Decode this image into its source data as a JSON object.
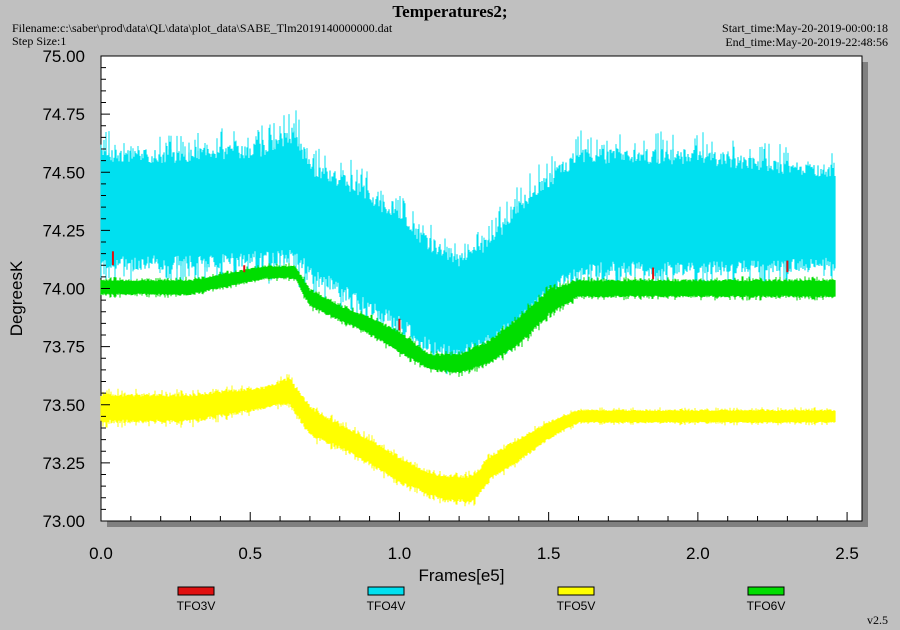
{
  "header": {
    "title": "Temperatures2;",
    "filename": "Filename:c:\\saber\\prod\\data\\QL\\data\\plot_data\\SABE_Tlm2019140000000.dat",
    "step_size": "Step Size:1",
    "start_time": "Start_time:May-20-2019-00:00:18",
    "end_time": "End_time:May-20-2019-22:48:56"
  },
  "version": "v2.5",
  "colors": {
    "background": "#c0c0c0",
    "plot_area": "#ffffff",
    "shadow": "#808080",
    "TFO3V": "#e01010",
    "TFO4V": "#00e0f0",
    "TFO5V": "#ffff00",
    "TFO6V": "#00dd00"
  },
  "chart_data": {
    "type": "line",
    "title": "Temperatures2;",
    "xlabel": "Frames[e5]",
    "ylabel": "DegreesK",
    "xlim": [
      0,
      2.55
    ],
    "ylim": [
      73.0,
      75.0
    ],
    "xticks": [
      "0.0",
      "0.5",
      "1.0",
      "1.5",
      "2.0",
      "2.5"
    ],
    "yticks": [
      "73.00",
      "73.25",
      "73.50",
      "73.75",
      "74.00",
      "74.25",
      "74.50",
      "74.75",
      "75.00"
    ],
    "grid": false,
    "legend_position": "bottom",
    "series": [
      {
        "name": "TFO3V",
        "x": [
          0.04,
          0.48,
          1.0,
          1.85,
          2.3
        ],
        "low": [
          74.1,
          74.07,
          73.82,
          74.04,
          74.07
        ],
        "high": [
          74.16,
          74.1,
          73.87,
          74.09,
          74.12
        ]
      },
      {
        "name": "TFO4V",
        "x": [
          0.0,
          0.3,
          0.55,
          0.65,
          0.7,
          0.85,
          1.0,
          1.1,
          1.2,
          1.3,
          1.4,
          1.5,
          1.6,
          2.0,
          2.46
        ],
        "low": [
          74.08,
          74.08,
          74.1,
          74.1,
          74.05,
          73.92,
          73.82,
          73.72,
          73.69,
          73.75,
          73.82,
          73.95,
          74.05,
          74.05,
          74.08
        ],
        "high": [
          74.6,
          74.6,
          74.63,
          74.7,
          74.55,
          74.47,
          74.34,
          74.22,
          74.15,
          74.22,
          74.38,
          74.5,
          74.6,
          74.6,
          74.52
        ]
      },
      {
        "name": "TFO5V",
        "x": [
          0.0,
          0.3,
          0.55,
          0.63,
          0.7,
          0.8,
          0.9,
          1.0,
          1.08,
          1.15,
          1.25,
          1.3,
          1.4,
          1.5,
          1.6,
          2.0,
          2.46
        ],
        "low": [
          73.42,
          73.42,
          73.48,
          73.5,
          73.36,
          73.31,
          73.24,
          73.16,
          73.12,
          73.08,
          73.08,
          73.17,
          73.25,
          73.35,
          73.42,
          73.42,
          73.42
        ],
        "high": [
          73.55,
          73.55,
          73.58,
          73.62,
          73.5,
          73.42,
          73.36,
          73.28,
          73.22,
          73.2,
          73.2,
          73.28,
          73.36,
          73.43,
          73.48,
          73.48,
          73.48
        ]
      },
      {
        "name": "TFO6V",
        "x": [
          0.0,
          0.3,
          0.55,
          0.65,
          0.7,
          0.8,
          0.9,
          1.0,
          1.1,
          1.2,
          1.3,
          1.4,
          1.5,
          1.6,
          2.0,
          2.46
        ],
        "low": [
          73.97,
          73.97,
          74.04,
          74.04,
          73.92,
          73.86,
          73.8,
          73.72,
          73.65,
          73.63,
          73.67,
          73.75,
          73.88,
          73.96,
          73.96,
          73.96
        ],
        "high": [
          74.04,
          74.04,
          74.1,
          74.1,
          74.0,
          73.93,
          73.88,
          73.82,
          73.72,
          73.72,
          73.78,
          73.88,
          74.0,
          74.04,
          74.04,
          74.04
        ]
      }
    ]
  }
}
